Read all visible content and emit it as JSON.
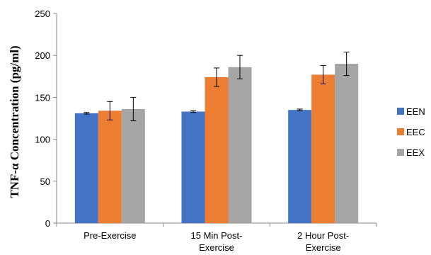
{
  "chart_data": {
    "type": "bar",
    "title": "",
    "xlabel": "",
    "ylabel": "TNF-α Concentration (pg/ml)",
    "ylim": [
      0,
      250
    ],
    "yticks": [
      0,
      50,
      100,
      150,
      200,
      250
    ],
    "categories": [
      [
        "Pre-Exercise"
      ],
      [
        "15 Min Post-",
        "Exercise"
      ],
      [
        "2 Hour Post-",
        "Exercise"
      ]
    ],
    "series": [
      {
        "name": "EEN",
        "color": "#4472C4",
        "values": [
          131,
          133,
          135
        ],
        "errors": [
          1,
          1,
          1
        ]
      },
      {
        "name": "EEC",
        "color": "#ED7D31",
        "values": [
          134,
          174,
          177
        ],
        "errors": [
          11,
          11,
          11
        ]
      },
      {
        "name": "EEX",
        "color": "#A5A5A5",
        "values": [
          136,
          186,
          190
        ],
        "errors": [
          14,
          14,
          14
        ]
      }
    ],
    "grid": false,
    "legend": "right"
  }
}
